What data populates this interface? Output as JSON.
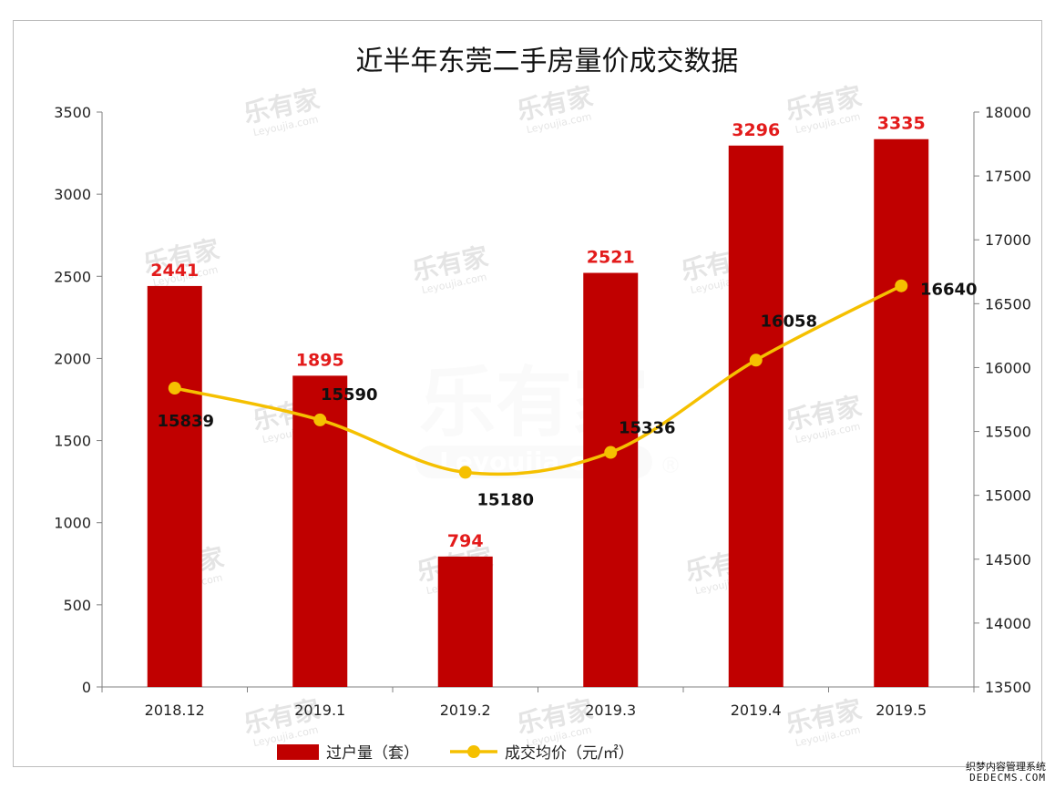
{
  "chart_data": {
    "type": "bar",
    "title": "近半年东莞二手房量价成交数据",
    "categories": [
      "2018.12",
      "2019.1",
      "2019.2",
      "2019.3",
      "2019.4",
      "2019.5"
    ],
    "series": [
      {
        "name": "过户量（套）",
        "type": "bar",
        "axis": "left",
        "values": [
          2441,
          1895,
          794,
          2521,
          3296,
          3335
        ],
        "color": "#c00000"
      },
      {
        "name": "成交均价（元/㎡）",
        "type": "line",
        "axis": "right",
        "values": [
          15839,
          15590,
          15180,
          15336,
          16058,
          16640
        ],
        "color": "#f5c000"
      }
    ],
    "y_left": {
      "lim": [
        0,
        3500
      ],
      "ticks": [
        "0",
        "500",
        "1000",
        "1500",
        "2000",
        "2500",
        "3000",
        "3500"
      ]
    },
    "y_right": {
      "lim": [
        13500,
        18000
      ],
      "ticks": [
        "13500",
        "14000",
        "14500",
        "15000",
        "15500",
        "16000",
        "16500",
        "17000",
        "17500",
        "18000"
      ]
    },
    "legend_position": "bottom-center",
    "grid": false,
    "bar_label_color": "#e31b1b",
    "line_label_color": "#111111"
  },
  "watermark": {
    "cn": "乐有家",
    "en": "Leyoujia.com",
    "mark": "®"
  },
  "credit": {
    "line1": "织梦内容管理系统",
    "line2": "DEDECMS.COM"
  }
}
